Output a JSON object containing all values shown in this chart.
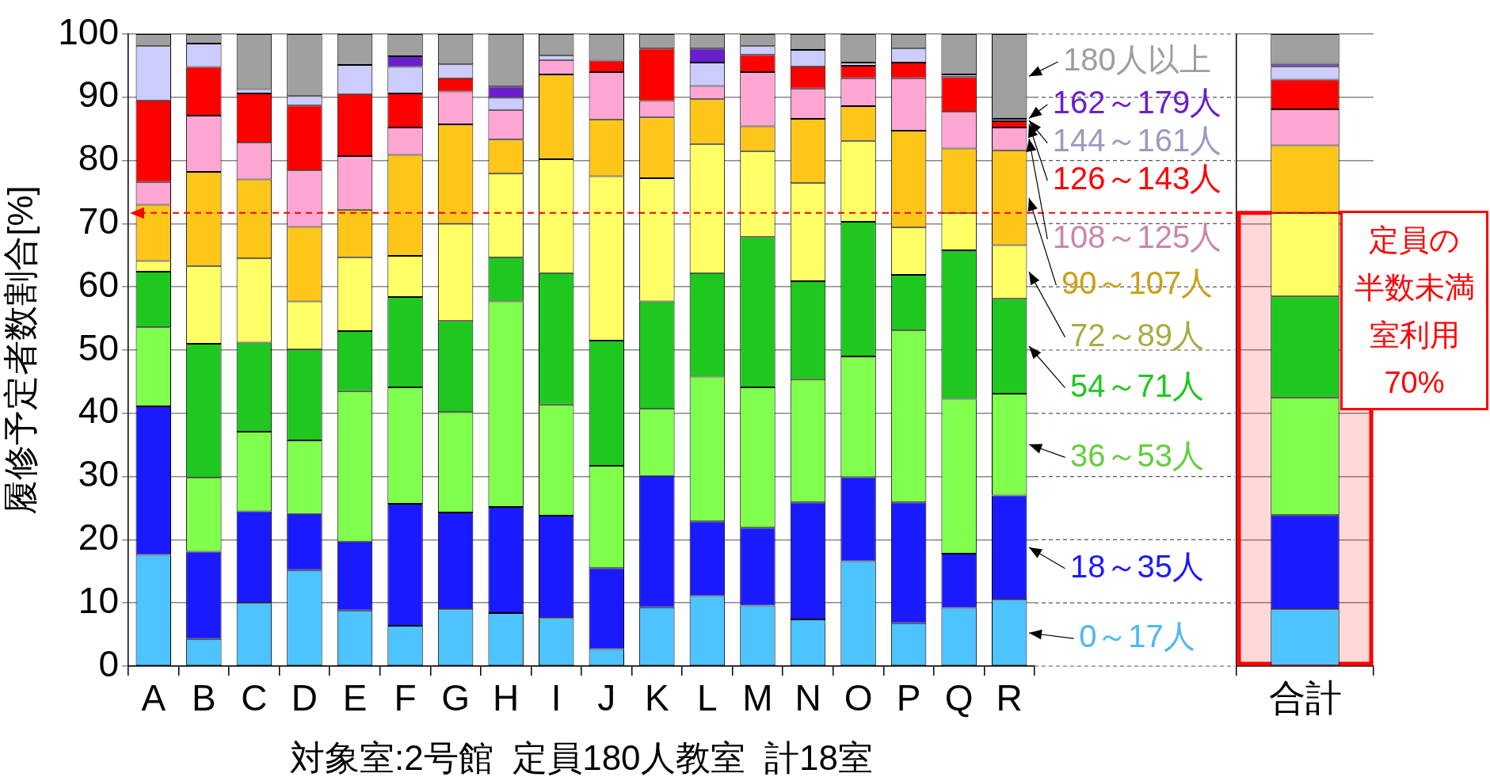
{
  "chart_data": [
    {
      "type": "bar",
      "stacked": true,
      "xlabel": "対象室:2号館  定員180人教室  計18室",
      "ylabel": "履修予定者数割合[%]",
      "categories": [
        "A",
        "B",
        "C",
        "D",
        "E",
        "F",
        "G",
        "H",
        "I",
        "J",
        "K",
        "L",
        "M",
        "N",
        "O",
        "P",
        "Q",
        "R"
      ],
      "ylim": [
        0,
        100
      ],
      "yticks": [
        0,
        10,
        20,
        30,
        40,
        50,
        60,
        70,
        80,
        90,
        100
      ],
      "grid": "y",
      "ref_lines": [
        {
          "axis": "y",
          "value": 71.7,
          "color": "#ff0000",
          "line_style": "dashed"
        }
      ],
      "series": [
        {
          "name": "0～17人",
          "color": "#4dc3ff",
          "values": [
            17.6,
            4.3,
            10.0,
            15.2,
            8.8,
            6.4,
            9.0,
            8.4,
            7.6,
            2.7,
            9.3,
            11.1,
            9.6,
            7.4,
            16.6,
            6.8,
            9.2,
            10.5
          ]
        },
        {
          "name": "18～35人",
          "color": "#1a1aff",
          "values": [
            23.5,
            13.8,
            14.5,
            8.9,
            10.9,
            19.3,
            15.3,
            16.8,
            16.2,
            12.8,
            20.8,
            11.8,
            12.3,
            18.5,
            13.3,
            19.1,
            8.6,
            16.5
          ]
        },
        {
          "name": "36～53人",
          "color": "#80ff4d",
          "values": [
            12.5,
            11.7,
            12.6,
            11.6,
            23.8,
            18.4,
            15.9,
            32.5,
            17.6,
            16.2,
            10.6,
            22.9,
            22.2,
            19.5,
            19.1,
            27.2,
            24.5,
            16.1
          ]
        },
        {
          "name": "54～71人",
          "color": "#1ec81e",
          "values": [
            8.8,
            21.2,
            14.1,
            14.4,
            9.5,
            14.3,
            14.4,
            7.0,
            20.8,
            19.8,
            17.0,
            16.4,
            23.8,
            15.5,
            21.3,
            8.8,
            23.5,
            15.0
          ]
        },
        {
          "name": "72～89人",
          "color": "#ffff66",
          "values": [
            1.7,
            12.3,
            13.3,
            7.6,
            11.7,
            6.5,
            15.4,
            13.2,
            18.0,
            26.0,
            19.5,
            20.4,
            13.6,
            15.5,
            12.8,
            7.5,
            5.9,
            8.5
          ]
        },
        {
          "name": "90～107人",
          "color": "#ffc61a",
          "values": [
            8.9,
            14.9,
            12.5,
            11.8,
            7.5,
            16.0,
            15.7,
            5.4,
            13.4,
            9.0,
            9.6,
            7.1,
            3.9,
            10.2,
            5.5,
            15.3,
            10.2,
            15.0
          ]
        },
        {
          "name": "108～125人",
          "color": "#ffa6d2",
          "values": [
            3.6,
            8.9,
            5.8,
            8.9,
            8.5,
            4.3,
            5.2,
            4.7,
            2.3,
            7.5,
            2.6,
            2.1,
            8.6,
            4.8,
            4.4,
            8.3,
            5.8,
            3.6
          ]
        },
        {
          "name": "126～143人",
          "color": "#ff0000",
          "values": [
            12.9,
            7.7,
            7.8,
            10.3,
            9.8,
            5.4,
            2.1,
            0,
            0,
            1.8,
            8.3,
            0,
            2.7,
            3.5,
            2.0,
            2.5,
            5.5,
            1.0
          ]
        },
        {
          "name": "144～161人",
          "color": "#ccccff",
          "values": [
            8.6,
            3.7,
            0.7,
            1.5,
            4.6,
            4.2,
            2.2,
            1.9,
            0.7,
            0,
            0,
            3.7,
            1.4,
            2.6,
            0.5,
            2.2,
            0.4,
            0.4
          ]
        },
        {
          "name": "162～179人",
          "color": "#6a1fcc",
          "values": [
            0,
            0,
            0,
            0,
            0,
            1.7,
            0,
            1.8,
            0,
            0,
            0,
            2.2,
            0,
            0,
            0,
            0,
            0,
            0
          ]
        },
        {
          "name": "180人以上",
          "color": "#a0a0a0",
          "values": [
            1.9,
            1.5,
            8.7,
            9.8,
            4.9,
            3.5,
            4.8,
            8.3,
            3.4,
            4.2,
            2.3,
            2.3,
            1.9,
            2.5,
            4.5,
            2.3,
            6.4,
            13.4
          ]
        }
      ]
    },
    {
      "type": "bar",
      "stacked": true,
      "categories": [
        "合計"
      ],
      "ylim": [
        0,
        100
      ],
      "yticks": [
        0,
        10,
        20,
        30,
        40,
        50,
        60,
        70,
        80,
        90,
        100
      ],
      "grid": "y",
      "tick_labels": "x",
      "ref_lines": [
        {
          "axis": "y",
          "value": 71.7,
          "color": "#ff0000",
          "line_style": "dashed"
        }
      ],
      "annotations": [
        "定員の",
        "半数未満",
        "室利用",
        "70%"
      ],
      "bands": [
        {
          "axis": "y",
          "from": 0,
          "to": 71.7,
          "color": "#ff0000"
        }
      ],
      "series": [
        {
          "color": "#4dc3ff",
          "values": [
            9.0
          ]
        },
        {
          "color": "#1a1aff",
          "values": [
            14.9
          ]
        },
        {
          "color": "#80ff4d",
          "values": [
            18.6
          ]
        },
        {
          "color": "#1ec81e",
          "values": [
            16.0
          ]
        },
        {
          "color": "#ffff66",
          "values": [
            13.2
          ]
        },
        {
          "color": "#ffc61a",
          "values": [
            10.7
          ]
        },
        {
          "color": "#ffa6d2",
          "values": [
            5.7
          ]
        },
        {
          "color": "#ff0000",
          "values": [
            4.7
          ]
        },
        {
          "color": "#ccccff",
          "values": [
            2.1
          ]
        },
        {
          "color": "#6a1fcc",
          "values": [
            0.4
          ]
        },
        {
          "color": "#a0a0a0",
          "values": [
            4.7
          ]
        }
      ]
    }
  ]
}
